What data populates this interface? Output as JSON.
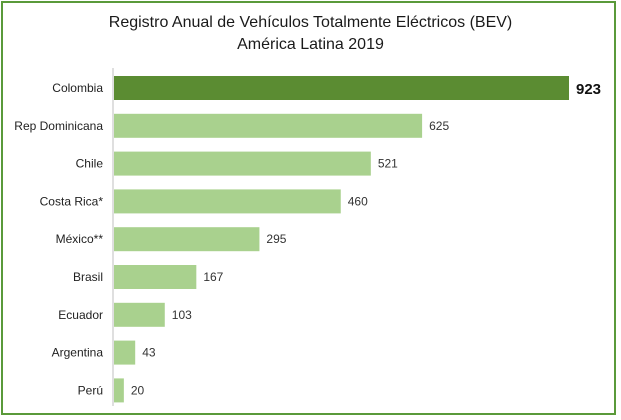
{
  "chart_data": {
    "type": "bar",
    "orientation": "horizontal",
    "title": "Registro Anual de Vehículos Totalmente Eléctricos (BEV)",
    "subtitle": "América Latina 2019",
    "categories": [
      "Colombia",
      "Rep Dominicana",
      "Chile",
      "Costa Rica*",
      "México**",
      "Brasil",
      "Ecuador",
      "Argentina",
      "Perú"
    ],
    "values": [
      923,
      625,
      521,
      460,
      295,
      167,
      103,
      43,
      20
    ],
    "value_labels": [
      "923",
      "625",
      "521",
      "460",
      "295",
      "167",
      "103",
      "43",
      "20"
    ],
    "highlight_index": 0,
    "xlim": [
      0,
      923
    ],
    "grid": false,
    "legend": "none",
    "colors": {
      "highlight": "#5b8c32",
      "bar": "#a9d18e",
      "frame": "#5a9a3a",
      "axis": "#bfbfbf"
    }
  }
}
